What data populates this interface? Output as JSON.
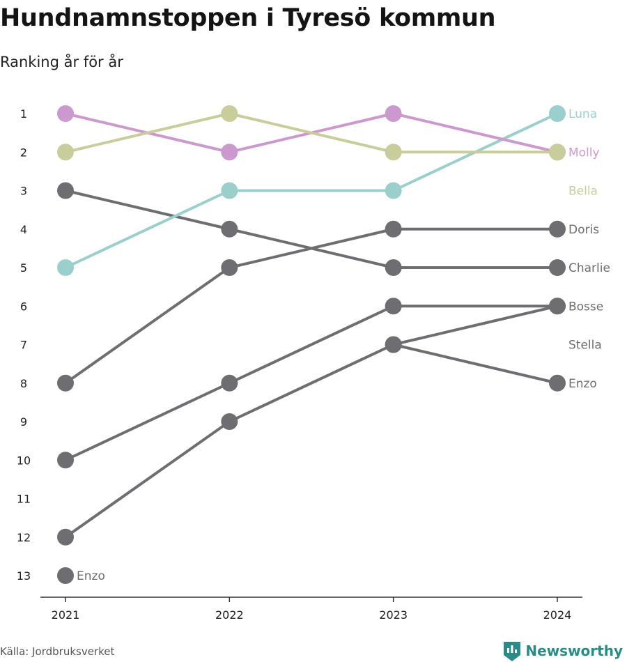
{
  "title": "Hundnamnstoppen i Tyresö kommun",
  "subtitle": "Ranking år för år",
  "source": "Källa: Jordbruksverket",
  "brand": {
    "name": "Newsworthy",
    "icon": "bar-chart-icon",
    "color": "#2a8c86"
  },
  "chart_data": {
    "type": "line",
    "chart_kind": "bump",
    "title": "Hundnamnstoppen i Tyresö kommun",
    "subtitle": "Ranking år för år",
    "x": [
      "2021",
      "2022",
      "2023",
      "2024"
    ],
    "y_ticks": [
      "1",
      "2",
      "3",
      "4",
      "5",
      "6",
      "7",
      "8",
      "9",
      "10",
      "11",
      "12",
      "13"
    ],
    "ylim": [
      1,
      13
    ],
    "y_reversed": true,
    "grid": false,
    "legend": "direct labels at right end",
    "series": [
      {
        "name": "Luna",
        "color": "#9bcfcc",
        "ranks": [
          5,
          3,
          3,
          1
        ]
      },
      {
        "name": "Molly",
        "color": "#cc99cf",
        "ranks": [
          1,
          2,
          1,
          2
        ]
      },
      {
        "name": "Bella",
        "color": "#c9cd9b",
        "ranks": [
          2,
          1,
          2,
          2
        ]
      },
      {
        "name": "Doris",
        "color": "#6e6d72",
        "ranks": [
          8,
          5,
          4,
          4
        ]
      },
      {
        "name": "Charlie",
        "color": "#6e6d72",
        "ranks": [
          3,
          4,
          5,
          5
        ]
      },
      {
        "name": "Bosse",
        "color": "#6e6d72",
        "ranks": [
          10,
          8,
          6,
          6
        ]
      },
      {
        "name": "Stella",
        "color": "#6e6d72",
        "ranks": [
          12,
          9,
          7,
          6
        ]
      },
      {
        "name": "Enzo",
        "color": "#6e6d72",
        "ranks": [
          13,
          null,
          7,
          8
        ]
      }
    ],
    "end_labels": [
      {
        "name": "Luna",
        "rank": 1,
        "color": "#9bcfcc"
      },
      {
        "name": "Molly",
        "rank": 2,
        "color": "#cc99cf"
      },
      {
        "name": "Bella",
        "rank": 3,
        "color": "#c9cd9b"
      },
      {
        "name": "Doris",
        "rank": 4,
        "color": "#6e6d72"
      },
      {
        "name": "Charlie",
        "rank": 5,
        "color": "#6e6d72"
      },
      {
        "name": "Bosse",
        "rank": 6,
        "color": "#6e6d72"
      },
      {
        "name": "Stella",
        "rank": 7,
        "color": "#6e6d72"
      },
      {
        "name": "Enzo",
        "rank": 8,
        "color": "#6e6d72"
      }
    ],
    "point_labels": [
      {
        "name": "Enzo",
        "x": "2021",
        "rank": 13,
        "color": "#6e6d72"
      }
    ]
  }
}
